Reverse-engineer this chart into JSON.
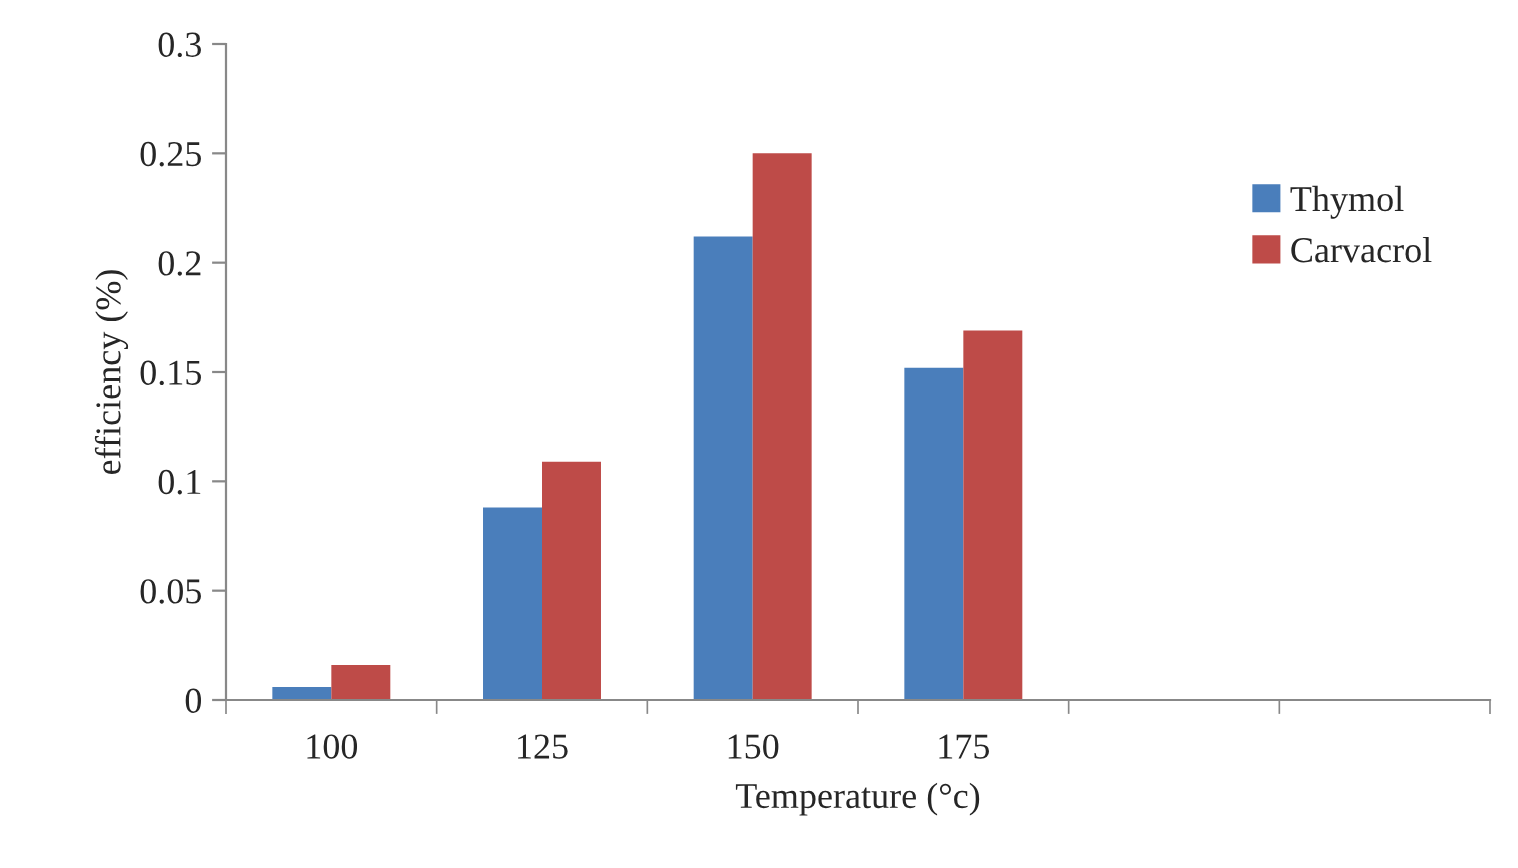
{
  "chart_data": {
    "type": "bar",
    "xlabel": "Temperature (°c)",
    "ylabel": "efficiency (%)",
    "categories": [
      "100",
      "125",
      "150",
      "175",
      null,
      null
    ],
    "series": [
      {
        "name": "Thymol",
        "color": "#4a7ebb",
        "values": [
          0.006,
          0.088,
          0.212,
          0.152,
          null,
          null
        ]
      },
      {
        "name": "Carvacrol",
        "color": "#be4b48",
        "values": [
          0.016,
          0.109,
          0.25,
          0.169,
          null,
          null
        ]
      }
    ],
    "ylim": [
      0,
      0.3
    ],
    "yticks": [
      {
        "value": 0,
        "label": "0"
      },
      {
        "value": 0.05,
        "label": "0.05"
      },
      {
        "value": 0.1,
        "label": "0.1"
      },
      {
        "value": 0.15,
        "label": "0.15"
      },
      {
        "value": 0.2,
        "label": "0.2"
      },
      {
        "value": 0.25,
        "label": "0.25"
      },
      {
        "value": 0.3,
        "label": "0.3"
      }
    ],
    "grid": false,
    "legend": "right"
  }
}
